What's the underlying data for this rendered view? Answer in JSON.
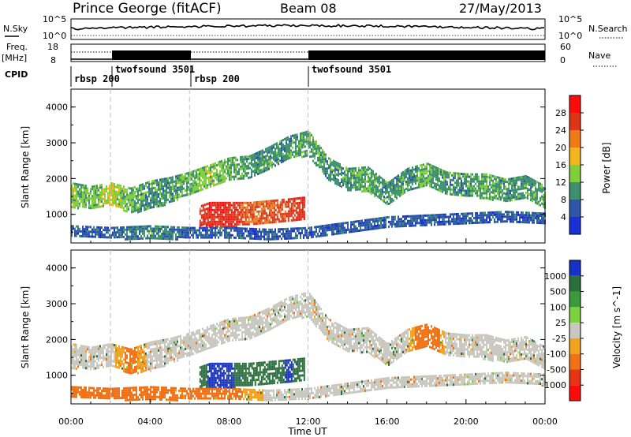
{
  "header": {
    "station": "Prince George (fitACF)",
    "beam": "Beam 08",
    "date": "27/May/2013"
  },
  "meta_labels": {
    "nsky": "N.Sky",
    "nsky_tick_hi": "10^5",
    "nsky_tick_lo": "10^0",
    "nsearch": "N.Search",
    "nsearch_tick_hi": "10^5",
    "nsearch_tick_lo": "10^0",
    "freq_label_1": "Freq.",
    "freq_label_2": "[MHz]",
    "freq_tick_hi": "18",
    "freq_tick_lo": "8",
    "nave_label": "Nave",
    "nave_tick_hi": "60",
    "nave_tick_lo": "0",
    "cpid": "CPID"
  },
  "cpid_segments": [
    {
      "name": "rbsp 200",
      "start_hour": 0.0
    },
    {
      "name": "twofsound 3501",
      "start_hour": 2.0
    },
    {
      "name": "rbsp 200",
      "start_hour": 6.0
    },
    {
      "name": "twofsound 3501",
      "start_hour": 12.0
    }
  ],
  "chart_data": [
    {
      "type": "heatmap",
      "title": "",
      "ylabel": "Slant Range [km]",
      "xlabel": "",
      "x_range_hours": [
        0,
        24
      ],
      "ylim": [
        200,
        4500
      ],
      "yticks": [
        "1000",
        "2000",
        "3000",
        "4000"
      ],
      "colorbar": {
        "label": "Power [dB]",
        "ticks": [
          "4",
          "8",
          "12",
          "16",
          "20",
          "24",
          "28"
        ],
        "colors": [
          "#1a2fd6",
          "#2e56a8",
          "#3c8f6f",
          "#7fcf3a",
          "#f2b51c",
          "#f07a14",
          "#e03416",
          "#ff0a0a"
        ]
      },
      "bands": [
        {
          "x": [
            0,
            1,
            2,
            3,
            4,
            5,
            6,
            7,
            8,
            9,
            10,
            11,
            12,
            13,
            14,
            15,
            16,
            17,
            18,
            19,
            20,
            21,
            22,
            23,
            24
          ],
          "y": [
            1550,
            1500,
            1600,
            1400,
            1550,
            1700,
            1900,
            2100,
            2300,
            2350,
            2600,
            2900,
            3000,
            2300,
            2000,
            2000,
            1600,
            2000,
            2150,
            1900,
            1850,
            1800,
            1700,
            1800,
            1500
          ],
          "width": [
            350,
            300,
            300,
            350,
            400,
            350,
            300,
            300,
            300,
            300,
            300,
            300,
            350,
            300,
            300,
            350,
            300,
            300,
            300,
            300,
            300,
            350,
            300,
            300,
            300
          ],
          "power": [
            14,
            12,
            16,
            12,
            10,
            10,
            12,
            14,
            12,
            10,
            10,
            10,
            12,
            10,
            10,
            12,
            10,
            10,
            12,
            10,
            10,
            12,
            10,
            10,
            12
          ]
        },
        {
          "x": [
            6.5,
            7,
            8,
            9,
            10,
            11,
            11.8
          ],
          "y": [
            950,
            1000,
            1000,
            1050,
            1100,
            1150,
            1200
          ],
          "width": [
            300,
            350,
            350,
            300,
            300,
            300,
            300
          ],
          "power": [
            26,
            28,
            28,
            24,
            24,
            26,
            28
          ]
        },
        {
          "x": [
            0,
            2,
            4,
            6,
            8,
            10,
            12,
            14,
            16,
            18,
            20,
            22,
            24
          ],
          "y": [
            550,
            500,
            500,
            500,
            500,
            450,
            500,
            650,
            800,
            850,
            900,
            950,
            900
          ],
          "width": [
            150,
            150,
            200,
            150,
            150,
            150,
            150,
            150,
            150,
            150,
            150,
            150,
            150
          ],
          "power": [
            6,
            6,
            10,
            6,
            6,
            6,
            6,
            6,
            6,
            6,
            6,
            6,
            6
          ]
        }
      ]
    },
    {
      "type": "heatmap",
      "title": "",
      "ylabel": "Slant Range [km]",
      "xlabel": "Time UT",
      "x_range_hours": [
        0,
        24
      ],
      "xticks": [
        "00:00",
        "04:00",
        "08:00",
        "12:00",
        "16:00",
        "20:00",
        "00:00"
      ],
      "ylim": [
        200,
        4500
      ],
      "yticks": [
        "1000",
        "2000",
        "3000",
        "4000"
      ],
      "colorbar": {
        "label": "Velocity [m s^-1]",
        "ticks": [
          "1000",
          "500",
          "100",
          "25",
          "-25",
          "-100",
          "-500",
          "-1000"
        ],
        "colors": [
          "#1630c8",
          "#2a6f3c",
          "#3b9a3a",
          "#7bd23a",
          "#c8c8c0",
          "#f2a21c",
          "#f07214",
          "#e83414",
          "#ff0a0a"
        ]
      },
      "bands": [
        {
          "x": [
            0,
            1,
            2,
            3,
            4,
            5,
            6,
            7,
            8,
            9,
            10,
            11,
            12,
            13,
            14,
            15,
            16,
            17,
            18,
            19,
            20,
            21,
            22,
            23,
            24
          ],
          "y": [
            1550,
            1500,
            1600,
            1400,
            1550,
            1700,
            1900,
            2100,
            2300,
            2350,
            2600,
            2900,
            3000,
            2300,
            2000,
            2000,
            1600,
            2000,
            2150,
            1900,
            1850,
            1800,
            1700,
            1800,
            1500
          ],
          "width": [
            350,
            300,
            300,
            350,
            400,
            350,
            300,
            300,
            300,
            300,
            300,
            300,
            350,
            300,
            300,
            350,
            300,
            300,
            300,
            300,
            300,
            350,
            300,
            300,
            300
          ],
          "velocity": [
            0,
            0,
            0,
            -150,
            0,
            0,
            0,
            0,
            0,
            0,
            0,
            0,
            0,
            0,
            0,
            0,
            0,
            0,
            -300,
            0,
            0,
            0,
            0,
            0,
            0
          ]
        },
        {
          "x": [
            6.5,
            7,
            8,
            9,
            10,
            11,
            11.8
          ],
          "y": [
            950,
            1000,
            1000,
            1050,
            1100,
            1150,
            1200
          ],
          "width": [
            300,
            350,
            350,
            300,
            300,
            300,
            300
          ],
          "velocity": [
            150,
            600,
            600,
            150,
            150,
            600,
            150
          ]
        },
        {
          "x": [
            0,
            2,
            4,
            6,
            8,
            10,
            12,
            14,
            16,
            18,
            20,
            22,
            24
          ],
          "y": [
            550,
            500,
            500,
            500,
            500,
            450,
            500,
            650,
            800,
            850,
            900,
            950,
            900
          ],
          "width": [
            150,
            150,
            200,
            150,
            150,
            150,
            150,
            150,
            150,
            150,
            150,
            150,
            150
          ],
          "velocity": [
            -300,
            -300,
            -300,
            -150,
            -150,
            0,
            0,
            0,
            0,
            0,
            0,
            0,
            0
          ]
        }
      ]
    }
  ]
}
